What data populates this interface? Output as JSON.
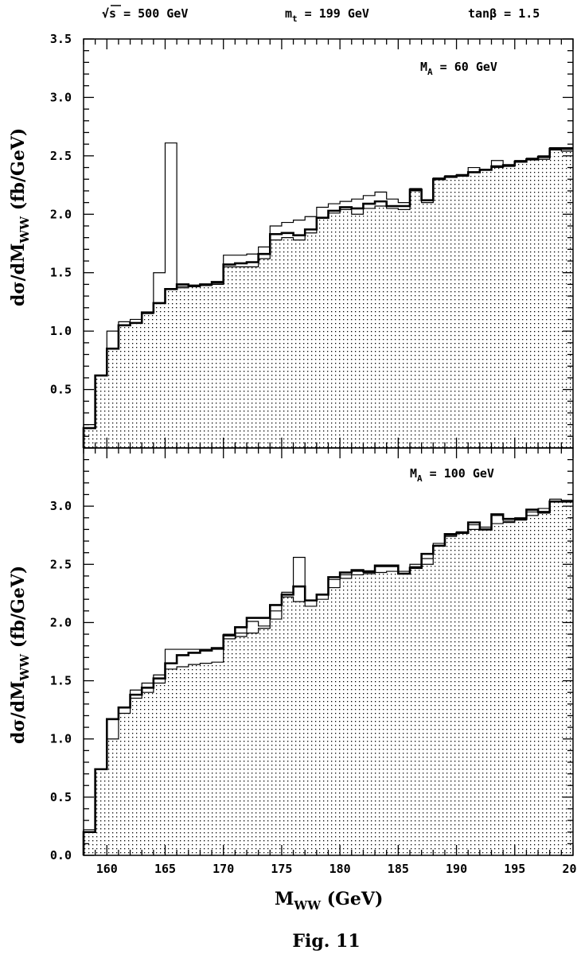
{
  "header": {
    "sqrt_s": "s =  500 GeV",
    "mt": "m",
    "mt_sub": "t",
    "mt_value": " = 199 GeV",
    "tanb": "tanβ = 1.5"
  },
  "caption": "Fig. 11",
  "chart_data": [
    {
      "type": "histogram",
      "annotation": {
        "main": "M",
        "sub": "A",
        "rest": " = 60 GeV"
      },
      "ylabel": {
        "main": "dσ/dM",
        "sub": "WW",
        "rest": "  (fb/GeV)"
      },
      "xlim": [
        158,
        200
      ],
      "ylim": [
        0,
        3.5
      ],
      "yticks": [
        "0.5",
        "1.0",
        "1.5",
        "2.0",
        "2.5",
        "3.0",
        "3.5"
      ],
      "bin_edges": [
        158,
        159,
        160,
        161,
        162,
        163,
        164,
        165,
        166,
        167,
        168,
        169,
        170,
        171,
        172,
        173,
        174,
        175,
        176,
        177,
        178,
        179,
        180,
        181,
        182,
        183,
        184,
        185,
        186,
        187,
        188,
        189,
        190,
        191,
        192,
        193,
        194,
        195,
        196,
        197,
        198,
        199,
        200
      ],
      "series": [
        {
          "role": "background_shaded",
          "values": [
            0.17,
            0.62,
            0.85,
            1.05,
            1.07,
            1.16,
            1.24,
            1.36,
            1.37,
            1.38,
            1.39,
            1.4,
            1.55,
            1.55,
            1.55,
            1.62,
            1.78,
            1.8,
            1.78,
            1.84,
            1.97,
            2.01,
            2.04,
            2.0,
            2.05,
            2.07,
            2.05,
            2.04,
            2.2,
            2.1,
            2.3,
            2.32,
            2.33,
            2.36,
            2.38,
            2.4,
            2.41,
            2.45,
            2.47,
            2.47,
            2.55,
            2.54
          ]
        },
        {
          "role": "total_thin",
          "values": [
            0.2,
            0.62,
            1.0,
            1.08,
            1.1,
            1.15,
            1.5,
            2.61,
            1.38,
            1.38,
            1.4,
            1.41,
            1.65,
            1.65,
            1.66,
            1.72,
            1.9,
            1.93,
            1.95,
            1.98,
            2.06,
            2.09,
            2.11,
            2.13,
            2.16,
            2.19,
            2.13,
            2.1,
            2.22,
            2.12,
            2.31,
            2.33,
            2.34,
            2.4,
            2.38,
            2.46,
            2.41,
            2.46,
            2.48,
            2.5,
            2.57,
            2.57
          ]
        },
        {
          "role": "total_thick",
          "values": [
            0.17,
            0.62,
            0.85,
            1.05,
            1.07,
            1.16,
            1.24,
            1.36,
            1.4,
            1.39,
            1.4,
            1.42,
            1.57,
            1.58,
            1.59,
            1.66,
            1.83,
            1.84,
            1.82,
            1.87,
            1.97,
            2.03,
            2.06,
            2.05,
            2.09,
            2.11,
            2.07,
            2.07,
            2.21,
            2.12,
            2.3,
            2.32,
            2.33,
            2.36,
            2.38,
            2.41,
            2.42,
            2.45,
            2.47,
            2.49,
            2.56,
            2.56
          ]
        }
      ]
    },
    {
      "type": "histogram",
      "annotation": {
        "main": "M",
        "sub": "A",
        "rest": " = 100 GeV"
      },
      "ylabel": {
        "main": "dσ/dM",
        "sub": "WW",
        "rest": "  (fb/GeV)"
      },
      "xlabel": {
        "main": "M",
        "sub": "WW",
        "rest": "  (GeV)"
      },
      "xlim": [
        158,
        200
      ],
      "ylim": [
        0,
        3.5
      ],
      "xticks": [
        "160",
        "165",
        "170",
        "175",
        "180",
        "185",
        "190",
        "195",
        "200"
      ],
      "yticks": [
        "0.0",
        "0.5",
        "1.0",
        "1.5",
        "2.0",
        "2.5",
        "3.0"
      ],
      "bin_edges": [
        158,
        159,
        160,
        161,
        162,
        163,
        164,
        165,
        166,
        167,
        168,
        169,
        170,
        171,
        172,
        173,
        174,
        175,
        176,
        177,
        178,
        179,
        180,
        181,
        182,
        183,
        184,
        185,
        186,
        187,
        188,
        189,
        190,
        191,
        192,
        193,
        194,
        195,
        196,
        197,
        198,
        199,
        200
      ],
      "series": [
        {
          "role": "background_shaded",
          "values": [
            0.2,
            0.74,
            1.0,
            1.22,
            1.35,
            1.4,
            1.48,
            1.6,
            1.62,
            1.64,
            1.65,
            1.66,
            1.86,
            1.88,
            1.91,
            1.95,
            2.03,
            2.22,
            2.18,
            2.14,
            2.2,
            2.3,
            2.38,
            2.41,
            2.42,
            2.43,
            2.44,
            2.42,
            2.48,
            2.5,
            2.68,
            2.75,
            2.77,
            2.8,
            2.82,
            2.85,
            2.86,
            2.88,
            2.92,
            2.94,
            3.04,
            3.04
          ]
        },
        {
          "role": "total_thin",
          "values": [
            0.22,
            0.74,
            1.17,
            1.27,
            1.42,
            1.48,
            1.55,
            1.77,
            1.77,
            1.77,
            1.77,
            1.77,
            1.9,
            1.91,
            2.01,
            1.97,
            2.1,
            2.26,
            2.56,
            2.19,
            2.24,
            2.37,
            2.41,
            2.44,
            2.43,
            2.48,
            2.48,
            2.44,
            2.5,
            2.55,
            2.66,
            2.74,
            2.78,
            2.84,
            2.8,
            2.92,
            2.87,
            2.9,
            2.95,
            2.98,
            3.06,
            3.05
          ]
        },
        {
          "role": "total_thick",
          "values": [
            0.2,
            0.74,
            1.17,
            1.27,
            1.38,
            1.44,
            1.52,
            1.65,
            1.72,
            1.74,
            1.76,
            1.78,
            1.89,
            1.96,
            2.04,
            2.04,
            2.15,
            2.24,
            2.31,
            2.19,
            2.24,
            2.39,
            2.43,
            2.45,
            2.44,
            2.49,
            2.49,
            2.42,
            2.47,
            2.59,
            2.66,
            2.76,
            2.77,
            2.86,
            2.8,
            2.93,
            2.89,
            2.89,
            2.97,
            2.95,
            3.04,
            3.04
          ]
        }
      ]
    }
  ]
}
